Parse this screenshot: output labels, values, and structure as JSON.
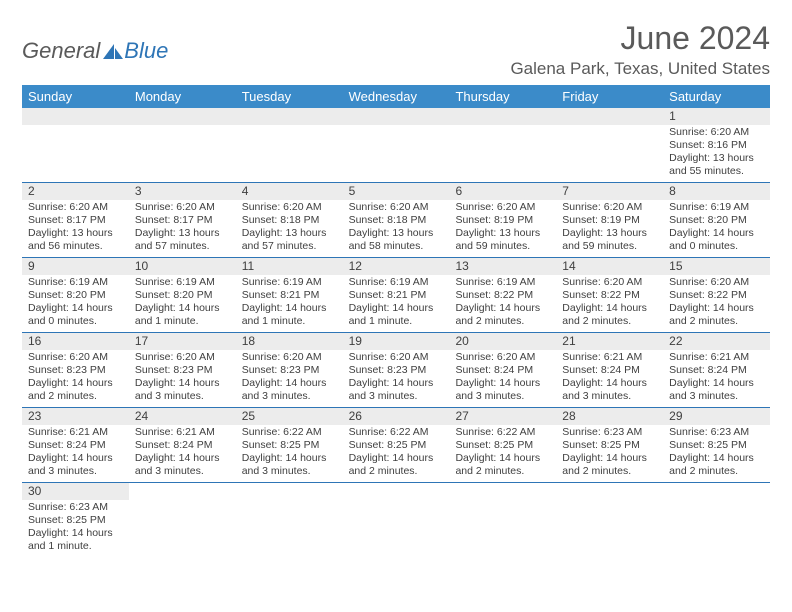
{
  "logo": {
    "general": "General",
    "blue": "Blue"
  },
  "title": "June 2024",
  "location": "Galena Park, Texas, United States",
  "day_headers": [
    "Sunday",
    "Monday",
    "Tuesday",
    "Wednesday",
    "Thursday",
    "Friday",
    "Saturday"
  ],
  "colors": {
    "header_bg": "#3b8bc9",
    "border": "#2e75b6",
    "daynum_bg": "#ececec",
    "text": "#404040",
    "logo_blue": "#2e75b6",
    "logo_gray": "#5a5a5a"
  },
  "weeks": [
    [
      null,
      null,
      null,
      null,
      null,
      null,
      {
        "n": "1",
        "sr": "Sunrise: 6:20 AM",
        "ss": "Sunset: 8:16 PM",
        "dl": "Daylight: 13 hours and 55 minutes."
      }
    ],
    [
      {
        "n": "2",
        "sr": "Sunrise: 6:20 AM",
        "ss": "Sunset: 8:17 PM",
        "dl": "Daylight: 13 hours and 56 minutes."
      },
      {
        "n": "3",
        "sr": "Sunrise: 6:20 AM",
        "ss": "Sunset: 8:17 PM",
        "dl": "Daylight: 13 hours and 57 minutes."
      },
      {
        "n": "4",
        "sr": "Sunrise: 6:20 AM",
        "ss": "Sunset: 8:18 PM",
        "dl": "Daylight: 13 hours and 57 minutes."
      },
      {
        "n": "5",
        "sr": "Sunrise: 6:20 AM",
        "ss": "Sunset: 8:18 PM",
        "dl": "Daylight: 13 hours and 58 minutes."
      },
      {
        "n": "6",
        "sr": "Sunrise: 6:20 AM",
        "ss": "Sunset: 8:19 PM",
        "dl": "Daylight: 13 hours and 59 minutes."
      },
      {
        "n": "7",
        "sr": "Sunrise: 6:20 AM",
        "ss": "Sunset: 8:19 PM",
        "dl": "Daylight: 13 hours and 59 minutes."
      },
      {
        "n": "8",
        "sr": "Sunrise: 6:19 AM",
        "ss": "Sunset: 8:20 PM",
        "dl": "Daylight: 14 hours and 0 minutes."
      }
    ],
    [
      {
        "n": "9",
        "sr": "Sunrise: 6:19 AM",
        "ss": "Sunset: 8:20 PM",
        "dl": "Daylight: 14 hours and 0 minutes."
      },
      {
        "n": "10",
        "sr": "Sunrise: 6:19 AM",
        "ss": "Sunset: 8:20 PM",
        "dl": "Daylight: 14 hours and 1 minute."
      },
      {
        "n": "11",
        "sr": "Sunrise: 6:19 AM",
        "ss": "Sunset: 8:21 PM",
        "dl": "Daylight: 14 hours and 1 minute."
      },
      {
        "n": "12",
        "sr": "Sunrise: 6:19 AM",
        "ss": "Sunset: 8:21 PM",
        "dl": "Daylight: 14 hours and 1 minute."
      },
      {
        "n": "13",
        "sr": "Sunrise: 6:19 AM",
        "ss": "Sunset: 8:22 PM",
        "dl": "Daylight: 14 hours and 2 minutes."
      },
      {
        "n": "14",
        "sr": "Sunrise: 6:20 AM",
        "ss": "Sunset: 8:22 PM",
        "dl": "Daylight: 14 hours and 2 minutes."
      },
      {
        "n": "15",
        "sr": "Sunrise: 6:20 AM",
        "ss": "Sunset: 8:22 PM",
        "dl": "Daylight: 14 hours and 2 minutes."
      }
    ],
    [
      {
        "n": "16",
        "sr": "Sunrise: 6:20 AM",
        "ss": "Sunset: 8:23 PM",
        "dl": "Daylight: 14 hours and 2 minutes."
      },
      {
        "n": "17",
        "sr": "Sunrise: 6:20 AM",
        "ss": "Sunset: 8:23 PM",
        "dl": "Daylight: 14 hours and 3 minutes."
      },
      {
        "n": "18",
        "sr": "Sunrise: 6:20 AM",
        "ss": "Sunset: 8:23 PM",
        "dl": "Daylight: 14 hours and 3 minutes."
      },
      {
        "n": "19",
        "sr": "Sunrise: 6:20 AM",
        "ss": "Sunset: 8:23 PM",
        "dl": "Daylight: 14 hours and 3 minutes."
      },
      {
        "n": "20",
        "sr": "Sunrise: 6:20 AM",
        "ss": "Sunset: 8:24 PM",
        "dl": "Daylight: 14 hours and 3 minutes."
      },
      {
        "n": "21",
        "sr": "Sunrise: 6:21 AM",
        "ss": "Sunset: 8:24 PM",
        "dl": "Daylight: 14 hours and 3 minutes."
      },
      {
        "n": "22",
        "sr": "Sunrise: 6:21 AM",
        "ss": "Sunset: 8:24 PM",
        "dl": "Daylight: 14 hours and 3 minutes."
      }
    ],
    [
      {
        "n": "23",
        "sr": "Sunrise: 6:21 AM",
        "ss": "Sunset: 8:24 PM",
        "dl": "Daylight: 14 hours and 3 minutes."
      },
      {
        "n": "24",
        "sr": "Sunrise: 6:21 AM",
        "ss": "Sunset: 8:24 PM",
        "dl": "Daylight: 14 hours and 3 minutes."
      },
      {
        "n": "25",
        "sr": "Sunrise: 6:22 AM",
        "ss": "Sunset: 8:25 PM",
        "dl": "Daylight: 14 hours and 3 minutes."
      },
      {
        "n": "26",
        "sr": "Sunrise: 6:22 AM",
        "ss": "Sunset: 8:25 PM",
        "dl": "Daylight: 14 hours and 2 minutes."
      },
      {
        "n": "27",
        "sr": "Sunrise: 6:22 AM",
        "ss": "Sunset: 8:25 PM",
        "dl": "Daylight: 14 hours and 2 minutes."
      },
      {
        "n": "28",
        "sr": "Sunrise: 6:23 AM",
        "ss": "Sunset: 8:25 PM",
        "dl": "Daylight: 14 hours and 2 minutes."
      },
      {
        "n": "29",
        "sr": "Sunrise: 6:23 AM",
        "ss": "Sunset: 8:25 PM",
        "dl": "Daylight: 14 hours and 2 minutes."
      }
    ],
    [
      {
        "n": "30",
        "sr": "Sunrise: 6:23 AM",
        "ss": "Sunset: 8:25 PM",
        "dl": "Daylight: 14 hours and 1 minute."
      },
      null,
      null,
      null,
      null,
      null,
      null
    ]
  ]
}
